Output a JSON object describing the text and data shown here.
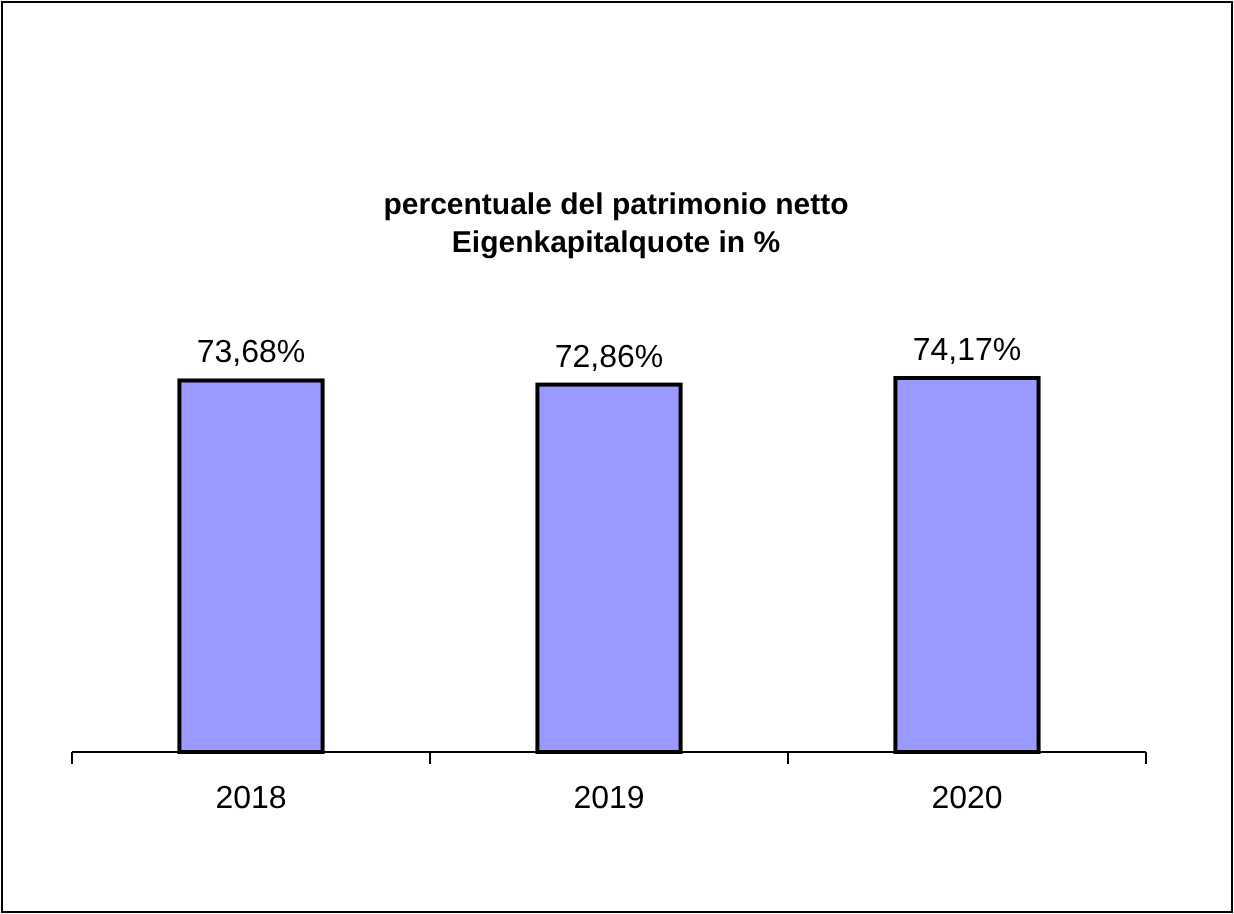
{
  "chart_data": {
    "type": "bar",
    "title": "percentuale del patrimonio netto\nEigenkapitalquote in %",
    "categories": [
      "2018",
      "2019",
      "2020"
    ],
    "values": [
      73.68,
      72.86,
      74.17
    ],
    "value_labels": [
      "73,68%",
      "72,86%",
      "74,17%"
    ],
    "color": "#9999ff"
  }
}
